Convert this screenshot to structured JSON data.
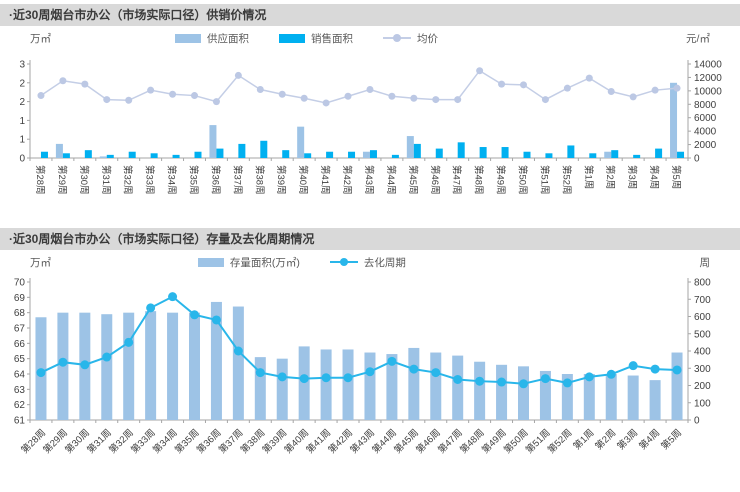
{
  "panel1": {
    "title": "·近30周烟台市办公（市场实际口径）供销价情况",
    "unit_left": "万㎡",
    "unit_right": "元/㎡",
    "legend": {
      "supply": "供应面积",
      "sales": "销售面积",
      "price": "均价"
    }
  },
  "panel2": {
    "title": "·近30周烟台市办公（市场实际口径）存量及去化周期情况",
    "unit_left": "万㎡",
    "unit_right": "周",
    "legend": {
      "stock": "存量面积(万㎡)",
      "cycle": "去化周期"
    }
  },
  "colors": {
    "supply_bar": "#9DC3E6",
    "sales_bar": "#00B0F0",
    "price_line": "#C4CEE6",
    "price_marker": "#BCC8E4",
    "stock_bar": "#9DC3E6",
    "cycle_line": "#29B6EA",
    "axis": "#A6A6A6",
    "header_bg": "#D9D9D9"
  },
  "chart_data": [
    {
      "type": "bar",
      "title": "近30周烟台市办公（市场实际口径）供销价情况",
      "grid": false,
      "legend_position": "top",
      "categories": [
        "第28周",
        "第29周",
        "第30周",
        "第31周",
        "第32周",
        "第33周",
        "第34周",
        "第35周",
        "第36周",
        "第37周",
        "第38周",
        "第39周",
        "第40周",
        "第41周",
        "第42周",
        "第43周",
        "第44周",
        "第45周",
        "第46周",
        "第47周",
        "第48周",
        "第49周",
        "第50周",
        "第51周",
        "第52周",
        "第1周",
        "第2周",
        "第3周",
        "第4周",
        "第5周"
      ],
      "series": [
        {
          "name": "供应面积",
          "kind": "bar",
          "axis": "left",
          "values": [
            0,
            0.45,
            0,
            0.05,
            0,
            0,
            0,
            0,
            1.05,
            0,
            0,
            0,
            1.0,
            0,
            0,
            0.2,
            0,
            0.7,
            0,
            0,
            0,
            0,
            0,
            0,
            0,
            0,
            0.2,
            0,
            0,
            2.4
          ]
        },
        {
          "name": "销售面积",
          "kind": "bar",
          "axis": "left",
          "values": [
            0.2,
            0.15,
            0.25,
            0.1,
            0.2,
            0.15,
            0.1,
            0.2,
            0.3,
            0.45,
            0.55,
            0.25,
            0.15,
            0.2,
            0.2,
            0.25,
            0.1,
            0.45,
            0.3,
            0.5,
            0.35,
            0.35,
            0.2,
            0.15,
            0.4,
            0.15,
            0.25,
            0.1,
            0.3,
            0.2
          ]
        },
        {
          "name": "均价",
          "kind": "line",
          "axis": "right",
          "values": [
            9300,
            11500,
            11000,
            8700,
            8600,
            10100,
            9500,
            9300,
            8400,
            12300,
            10200,
            9500,
            8900,
            8200,
            9200,
            10200,
            9200,
            8900,
            8700,
            8700,
            13000,
            11000,
            10900,
            8700,
            10400,
            11900,
            9900,
            9100,
            10100,
            10400
          ]
        }
      ],
      "left_axis": {
        "min": 0,
        "max": 3,
        "values": [
          0,
          0.6,
          1.2,
          1.8,
          2.4,
          3
        ],
        "labels": [
          "0",
          "1",
          "1",
          "2",
          "2",
          "3"
        ],
        "unit": "万㎡"
      },
      "right_axis": {
        "min": 0,
        "max": 14000,
        "values": [
          0,
          2000,
          4000,
          6000,
          8000,
          10000,
          12000,
          14000
        ],
        "labels": [
          "0",
          "2000",
          "4000",
          "6000",
          "8000",
          "10000",
          "12000",
          "14000"
        ],
        "unit": "元/㎡"
      }
    },
    {
      "type": "bar",
      "title": "近30周烟台市办公（市场实际口径）存量及去化周期情况",
      "grid": false,
      "legend_position": "top",
      "categories": [
        "第28周",
        "第29周",
        "第30周",
        "第31周",
        "第32周",
        "第33周",
        "第34周",
        "第35周",
        "第36周",
        "第37周",
        "第38周",
        "第39周",
        "第40周",
        "第41周",
        "第42周",
        "第43周",
        "第44周",
        "第45周",
        "第46周",
        "第47周",
        "第48周",
        "第49周",
        "第50周",
        "第51周",
        "第52周",
        "第1周",
        "第2周",
        "第3周",
        "第4周",
        "第5周"
      ],
      "series": [
        {
          "name": "存量面积(万㎡)",
          "kind": "bar",
          "axis": "left",
          "values": [
            67.7,
            68.0,
            68.0,
            67.9,
            68.0,
            68.1,
            68.0,
            68.0,
            68.7,
            68.4,
            65.1,
            65.0,
            65.8,
            65.6,
            65.6,
            65.4,
            65.3,
            65.7,
            65.4,
            65.2,
            64.8,
            64.6,
            64.5,
            64.2,
            64.0,
            64.0,
            64.0,
            63.9,
            63.6,
            65.4
          ]
        },
        {
          "name": "去化周期",
          "kind": "line",
          "axis": "right",
          "values": [
            275,
            335,
            320,
            365,
            450,
            650,
            715,
            610,
            580,
            400,
            275,
            250,
            240,
            245,
            245,
            280,
            340,
            295,
            275,
            235,
            225,
            220,
            210,
            240,
            215,
            250,
            265,
            315,
            295,
            290
          ]
        }
      ],
      "left_axis": {
        "min": 61,
        "max": 70,
        "values": [
          61,
          62,
          63,
          64,
          65,
          66,
          67,
          68,
          69,
          70
        ],
        "labels": [
          "61",
          "62",
          "63",
          "64",
          "65",
          "66",
          "67",
          "68",
          "69",
          "70"
        ],
        "unit": "万㎡"
      },
      "right_axis": {
        "min": 0,
        "max": 800,
        "values": [
          0,
          100,
          200,
          300,
          400,
          500,
          600,
          700,
          800
        ],
        "labels": [
          "0",
          "100",
          "200",
          "300",
          "400",
          "500",
          "600",
          "700",
          "800"
        ],
        "unit": "周"
      }
    }
  ]
}
